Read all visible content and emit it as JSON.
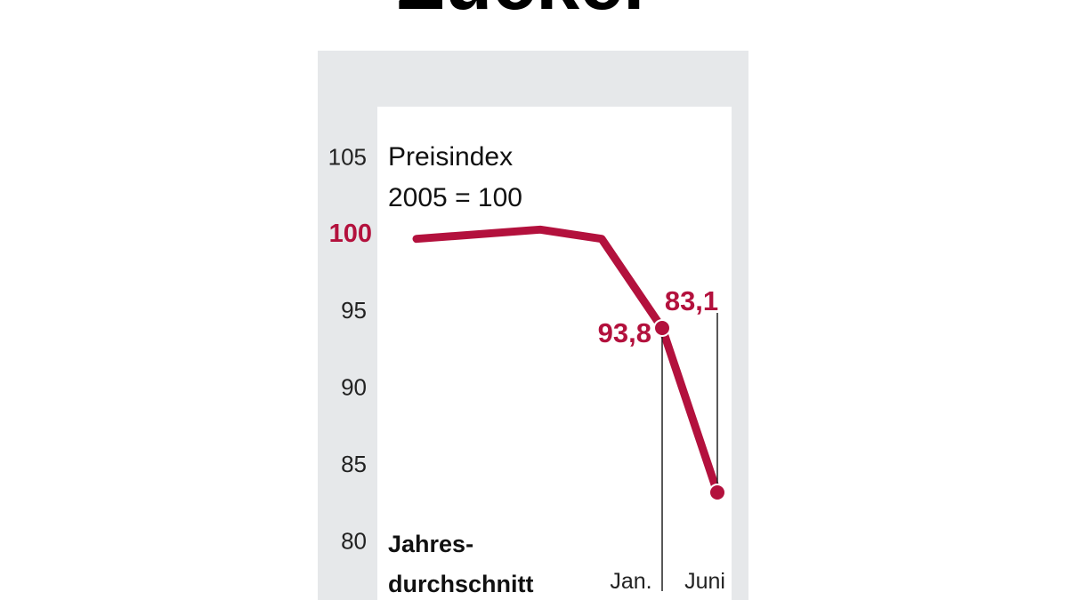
{
  "chart_data": {
    "type": "line",
    "title": "Zucker",
    "annotation": [
      "Preisindex",
      "2005 = 100"
    ],
    "categories": [
      null,
      null,
      null,
      "Jan.",
      "Juni"
    ],
    "category_group_label": [
      "Jahres-",
      "durchschnitt"
    ],
    "series": [
      {
        "name": "Preisindex",
        "color": "#b3113d",
        "values": [
          99.6,
          100.2,
          99.6,
          93.8,
          83.1
        ],
        "value_labels": [
          null,
          null,
          null,
          "93,8",
          "83,1"
        ]
      }
    ],
    "ylim": [
      76.1,
      108.2
    ],
    "yticks": [
      80,
      85,
      90,
      95,
      100,
      105
    ],
    "highlight_ytick": 100,
    "grid": false
  }
}
